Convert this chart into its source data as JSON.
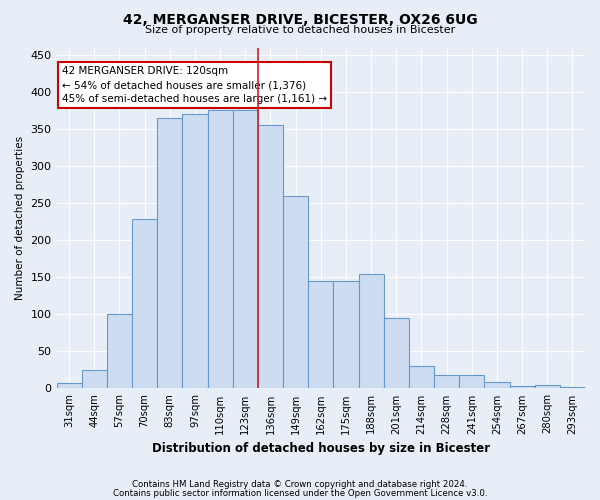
{
  "title1": "42, MERGANSER DRIVE, BICESTER, OX26 6UG",
  "title2": "Size of property relative to detached houses in Bicester",
  "xlabel": "Distribution of detached houses by size in Bicester",
  "ylabel": "Number of detached properties",
  "footer1": "Contains HM Land Registry data © Crown copyright and database right 2024.",
  "footer2": "Contains public sector information licensed under the Open Government Licence v3.0.",
  "categories": [
    "31sqm",
    "44sqm",
    "57sqm",
    "70sqm",
    "83sqm",
    "97sqm",
    "110sqm",
    "123sqm",
    "136sqm",
    "149sqm",
    "162sqm",
    "175sqm",
    "188sqm",
    "201sqm",
    "214sqm",
    "228sqm",
    "241sqm",
    "254sqm",
    "267sqm",
    "280sqm",
    "293sqm"
  ],
  "values": [
    8,
    25,
    100,
    228,
    365,
    370,
    375,
    375,
    355,
    260,
    145,
    145,
    155,
    95,
    30,
    18,
    18,
    9,
    3,
    5,
    2
  ],
  "bar_color": "#cddcf0",
  "bar_edge_color": "#6699cc",
  "bg_color": "#e8eef8",
  "grid_color": "#ffffff",
  "red_line_x": 7.5,
  "annotation_line1": "42 MERGANSER DRIVE: 120sqm",
  "annotation_line2": "← 54% of detached houses are smaller (1,376)",
  "annotation_line3": "45% of semi-detached houses are larger (1,161) →",
  "annotation_box_color": "#ffffff",
  "annotation_box_edge": "#cc0000",
  "ylim": [
    0,
    460
  ],
  "yticks": [
    0,
    50,
    100,
    150,
    200,
    250,
    300,
    350,
    400,
    450
  ]
}
